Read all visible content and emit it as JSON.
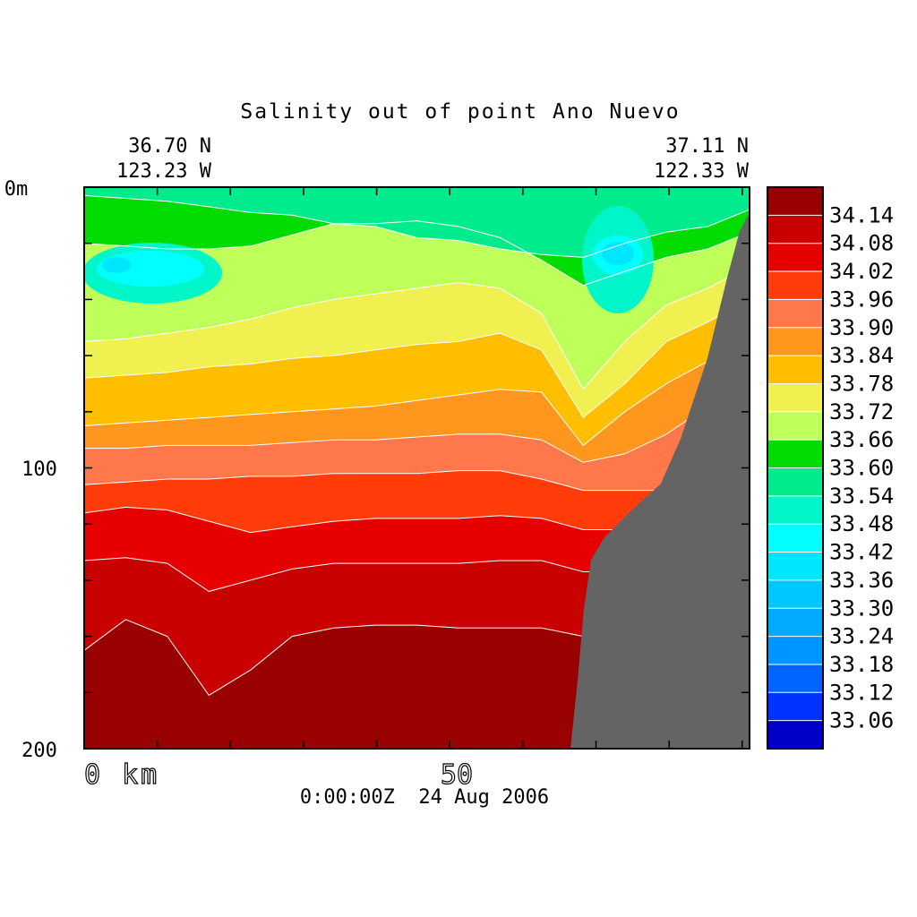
{
  "chart_data": {
    "type": "heatmap",
    "title": "Salinity out of point Ano Nuevo",
    "start_point": {
      "lat": "36.70 N",
      "lon": "123.23 W"
    },
    "end_point": {
      "lat": "37.11 N",
      "lon": "122.33 W"
    },
    "timestamp": "0:00:00Z  24 Aug 2006",
    "x_axis": {
      "unit": "km",
      "tick_labels": [
        "0 km",
        "50"
      ],
      "ticks": [
        0,
        50
      ],
      "range": [
        0,
        91
      ]
    },
    "y_axis": {
      "unit": "m",
      "tick_labels": [
        "0m",
        "100",
        "200"
      ],
      "ticks": [
        0,
        100,
        200
      ],
      "range": [
        0,
        200
      ],
      "inverted": true
    },
    "colorbar": {
      "labels": [
        "34.14",
        "34.08",
        "34.02",
        "33.96",
        "33.90",
        "33.84",
        "33.78",
        "33.72",
        "33.66",
        "33.60",
        "33.54",
        "33.48",
        "33.42",
        "33.36",
        "33.30",
        "33.24",
        "33.18",
        "33.12",
        "33.06"
      ],
      "colors": [
        "#990000",
        "#c80000",
        "#e60000",
        "#ff3c0a",
        "#ff784b",
        "#ff961e",
        "#ffbe00",
        "#f0f050",
        "#beff5a",
        "#00dc00",
        "#00eb8c",
        "#00f5c8",
        "#00ffff",
        "#00e6ff",
        "#00c8ff",
        "#00aaff",
        "#0096ff",
        "#0064ff",
        "#0032ff",
        "#0000c8"
      ]
    },
    "bathymetry_color": "#646464",
    "contours": [
      {
        "value": 33.54,
        "depth": [
          3,
          4,
          5,
          7,
          9,
          10,
          13,
          14,
          18,
          19,
          22,
          24,
          25,
          20,
          16,
          14,
          8
        ]
      },
      {
        "value": 33.6,
        "depth": [
          20,
          21,
          22,
          22,
          21,
          17,
          13,
          13,
          12,
          14,
          18,
          26,
          35,
          30,
          25,
          22,
          16
        ]
      },
      {
        "value": 33.66,
        "depth": [
          55,
          54,
          52,
          50,
          47,
          43,
          40,
          38,
          36,
          34,
          36,
          45,
          72,
          55,
          42,
          36,
          28
        ]
      },
      {
        "value": 33.72,
        "depth": [
          68,
          67,
          66,
          64,
          63,
          61,
          60,
          58,
          56,
          55,
          52,
          58,
          82,
          70,
          55,
          48,
          40
        ]
      },
      {
        "value": 33.78,
        "depth": [
          85,
          84,
          83,
          82,
          81,
          80,
          79,
          78,
          76,
          74,
          72,
          73,
          92,
          80,
          70,
          62,
          50
        ]
      },
      {
        "value": 33.84,
        "depth": [
          93,
          93,
          92,
          92,
          92,
          91,
          90,
          90,
          89,
          88,
          88,
          90,
          98,
          95,
          88,
          78,
          66
        ]
      },
      {
        "value": 33.9,
        "depth": [
          106,
          105,
          104,
          104,
          103,
          103,
          102,
          102,
          102,
          101,
          101,
          104,
          108,
          108,
          108,
          104,
          90
        ]
      },
      {
        "value": 33.96,
        "depth": [
          116,
          114,
          115,
          119,
          123,
          121,
          119,
          118,
          118,
          118,
          117,
          118,
          122,
          122,
          118,
          114,
          104
        ]
      },
      {
        "value": 34.02,
        "depth": [
          133,
          132,
          134,
          144,
          140,
          136,
          134,
          134,
          134,
          134,
          133,
          133,
          137,
          137,
          132,
          126,
          116
        ]
      },
      {
        "value": 34.08,
        "depth": [
          165,
          154,
          160,
          181,
          172,
          160,
          157,
          156,
          156,
          157,
          157,
          157,
          160,
          158,
          148,
          145,
          136
        ]
      }
    ]
  }
}
